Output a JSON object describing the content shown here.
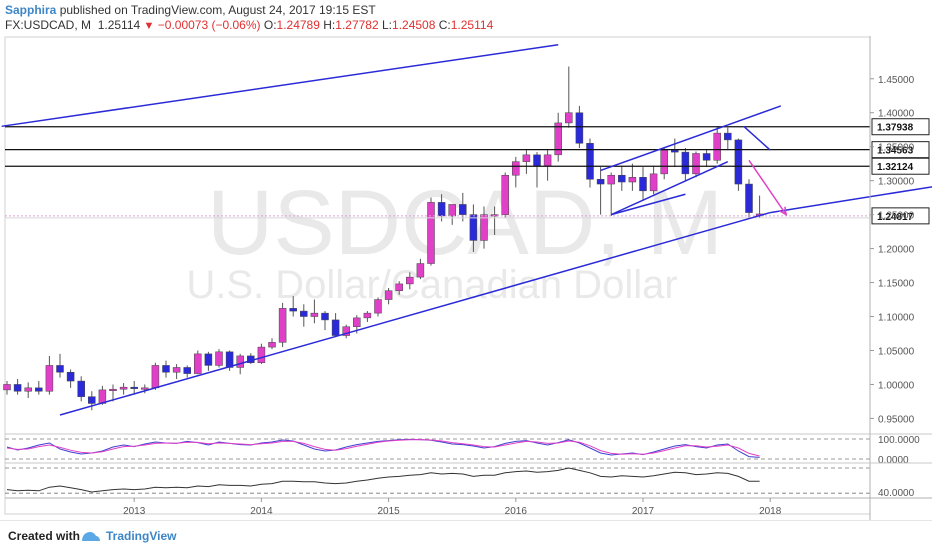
{
  "header": {
    "author": "Sapphira",
    "published_text": " published on TradingView.com, August 24, 2017 19:15 EST",
    "symbol": "FX:USDCAD, M",
    "last": "1.25114",
    "arrow": "▼",
    "change": "−0.00073 (−0.06%)",
    "o_label": "O:",
    "o_value": "1.24789",
    "h_label": "H:",
    "h_value": "1.27782",
    "l_label": "L:",
    "l_value": "1.24508",
    "c_label": "C:",
    "c_value": "1.25114"
  },
  "footer": {
    "created_with": "Created with",
    "brand": "TradingView"
  },
  "watermark": {
    "line1": "USDCAD, M",
    "line2": "U.S. Dollar/Canadian Dollar"
  },
  "colors": {
    "up": "#e040c8",
    "down": "#2a2ad8",
    "trend": "#2a2ad8",
    "level": "#111111",
    "arrow": "#e040c8"
  },
  "chart_data": {
    "type": "candlestick",
    "timeframe": "monthly",
    "price_axis": {
      "ylim": [
        0.93,
        1.51
      ],
      "ticks": [
        0.95,
        1.0,
        1.05,
        1.1,
        1.15,
        1.2,
        1.25,
        1.3,
        1.35,
        1.4,
        1.45
      ],
      "tick_labels": [
        "0.95000",
        "1.00000",
        "1.05000",
        "1.10000",
        "1.15000",
        "1.20000",
        "1.25000",
        "1.30000",
        "1.35000",
        "1.40000",
        "1.45000"
      ]
    },
    "time_axis": {
      "labels": [
        "2013",
        "2014",
        "2015",
        "2016",
        "2017",
        "2018"
      ]
    },
    "candles": [
      {
        "o": 0.992,
        "h": 1.005,
        "l": 0.985,
        "c": 1.0
      },
      {
        "o": 1.0,
        "h": 1.008,
        "l": 0.985,
        "c": 0.99
      },
      {
        "o": 0.99,
        "h": 1.003,
        "l": 0.98,
        "c": 0.995
      },
      {
        "o": 0.995,
        "h": 1.005,
        "l": 0.985,
        "c": 0.99
      },
      {
        "o": 0.99,
        "h": 1.042,
        "l": 0.985,
        "c": 1.028
      },
      {
        "o": 1.028,
        "h": 1.045,
        "l": 1.01,
        "c": 1.018
      },
      {
        "o": 1.018,
        "h": 1.022,
        "l": 0.995,
        "c": 1.005
      },
      {
        "o": 1.005,
        "h": 1.012,
        "l": 0.975,
        "c": 0.982
      },
      {
        "o": 0.982,
        "h": 0.99,
        "l": 0.962,
        "c": 0.972
      },
      {
        "o": 0.972,
        "h": 0.998,
        "l": 0.97,
        "c": 0.992
      },
      {
        "o": 0.992,
        "h": 1.0,
        "l": 0.975,
        "c": 0.993
      },
      {
        "o": 0.993,
        "h": 1.002,
        "l": 0.985,
        "c": 0.996
      },
      {
        "o": 0.996,
        "h": 1.005,
        "l": 0.985,
        "c": 0.994
      },
      {
        "o": 0.994,
        "h": 1.0,
        "l": 0.987,
        "c": 0.995
      },
      {
        "o": 0.995,
        "h": 1.032,
        "l": 0.992,
        "c": 1.028
      },
      {
        "o": 1.028,
        "h": 1.035,
        "l": 1.01,
        "c": 1.018
      },
      {
        "o": 1.018,
        "h": 1.03,
        "l": 1.008,
        "c": 1.025
      },
      {
        "o": 1.025,
        "h": 1.028,
        "l": 1.01,
        "c": 1.016
      },
      {
        "o": 1.016,
        "h": 1.05,
        "l": 1.015,
        "c": 1.045
      },
      {
        "o": 1.045,
        "h": 1.048,
        "l": 1.02,
        "c": 1.028
      },
      {
        "o": 1.028,
        "h": 1.052,
        "l": 1.025,
        "c": 1.048
      },
      {
        "o": 1.048,
        "h": 1.05,
        "l": 1.02,
        "c": 1.025
      },
      {
        "o": 1.025,
        "h": 1.045,
        "l": 1.015,
        "c": 1.042
      },
      {
        "o": 1.042,
        "h": 1.046,
        "l": 1.03,
        "c": 1.032
      },
      {
        "o": 1.032,
        "h": 1.06,
        "l": 1.03,
        "c": 1.055
      },
      {
        "o": 1.055,
        "h": 1.068,
        "l": 1.052,
        "c": 1.062
      },
      {
        "o": 1.062,
        "h": 1.12,
        "l": 1.055,
        "c": 1.112
      },
      {
        "o": 1.112,
        "h": 1.13,
        "l": 1.1,
        "c": 1.108
      },
      {
        "o": 1.108,
        "h": 1.118,
        "l": 1.085,
        "c": 1.1
      },
      {
        "o": 1.1,
        "h": 1.125,
        "l": 1.09,
        "c": 1.105
      },
      {
        "o": 1.105,
        "h": 1.108,
        "l": 1.08,
        "c": 1.095
      },
      {
        "o": 1.095,
        "h": 1.105,
        "l": 1.07,
        "c": 1.072
      },
      {
        "o": 1.072,
        "h": 1.088,
        "l": 1.068,
        "c": 1.085
      },
      {
        "o": 1.085,
        "h": 1.102,
        "l": 1.075,
        "c": 1.098
      },
      {
        "o": 1.098,
        "h": 1.108,
        "l": 1.092,
        "c": 1.105
      },
      {
        "o": 1.105,
        "h": 1.128,
        "l": 1.1,
        "c": 1.125
      },
      {
        "o": 1.125,
        "h": 1.142,
        "l": 1.118,
        "c": 1.138
      },
      {
        "o": 1.138,
        "h": 1.152,
        "l": 1.132,
        "c": 1.148
      },
      {
        "o": 1.148,
        "h": 1.165,
        "l": 1.14,
        "c": 1.158
      },
      {
        "o": 1.158,
        "h": 1.185,
        "l": 1.155,
        "c": 1.178
      },
      {
        "o": 1.178,
        "h": 1.275,
        "l": 1.175,
        "c": 1.268
      },
      {
        "o": 1.268,
        "h": 1.28,
        "l": 1.24,
        "c": 1.248
      },
      {
        "o": 1.248,
        "h": 1.265,
        "l": 1.235,
        "c": 1.265
      },
      {
        "o": 1.265,
        "h": 1.282,
        "l": 1.24,
        "c": 1.25
      },
      {
        "o": 1.25,
        "h": 1.265,
        "l": 1.195,
        "c": 1.212
      },
      {
        "o": 1.212,
        "h": 1.262,
        "l": 1.2,
        "c": 1.25
      },
      {
        "o": 1.25,
        "h": 1.262,
        "l": 1.22,
        "c": 1.25
      },
      {
        "o": 1.25,
        "h": 1.312,
        "l": 1.245,
        "c": 1.308
      },
      {
        "o": 1.308,
        "h": 1.335,
        "l": 1.29,
        "c": 1.328
      },
      {
        "o": 1.328,
        "h": 1.345,
        "l": 1.31,
        "c": 1.338
      },
      {
        "o": 1.338,
        "h": 1.342,
        "l": 1.29,
        "c": 1.322
      },
      {
        "o": 1.322,
        "h": 1.345,
        "l": 1.3,
        "c": 1.338
      },
      {
        "o": 1.338,
        "h": 1.4,
        "l": 1.328,
        "c": 1.385
      },
      {
        "o": 1.385,
        "h": 1.468,
        "l": 1.378,
        "c": 1.4
      },
      {
        "o": 1.4,
        "h": 1.41,
        "l": 1.348,
        "c": 1.355
      },
      {
        "o": 1.355,
        "h": 1.362,
        "l": 1.29,
        "c": 1.302
      },
      {
        "o": 1.302,
        "h": 1.32,
        "l": 1.25,
        "c": 1.295
      },
      {
        "o": 1.295,
        "h": 1.312,
        "l": 1.248,
        "c": 1.308
      },
      {
        "o": 1.308,
        "h": 1.322,
        "l": 1.285,
        "c": 1.298
      },
      {
        "o": 1.298,
        "h": 1.325,
        "l": 1.285,
        "c": 1.305
      },
      {
        "o": 1.305,
        "h": 1.32,
        "l": 1.27,
        "c": 1.285
      },
      {
        "o": 1.285,
        "h": 1.322,
        "l": 1.28,
        "c": 1.31
      },
      {
        "o": 1.31,
        "h": 1.348,
        "l": 1.302,
        "c": 1.345
      },
      {
        "o": 1.345,
        "h": 1.362,
        "l": 1.32,
        "c": 1.342
      },
      {
        "o": 1.342,
        "h": 1.348,
        "l": 1.3,
        "c": 1.31
      },
      {
        "o": 1.31,
        "h": 1.343,
        "l": 1.305,
        "c": 1.34
      },
      {
        "o": 1.34,
        "h": 1.345,
        "l": 1.32,
        "c": 1.33
      },
      {
        "o": 1.33,
        "h": 1.38,
        "l": 1.325,
        "c": 1.37
      },
      {
        "o": 1.37,
        "h": 1.378,
        "l": 1.345,
        "c": 1.36
      },
      {
        "o": 1.36,
        "h": 1.362,
        "l": 1.285,
        "c": 1.295
      },
      {
        "o": 1.295,
        "h": 1.302,
        "l": 1.245,
        "c": 1.253
      },
      {
        "o": 1.248,
        "h": 1.278,
        "l": 1.245,
        "c": 1.251
      }
    ],
    "horizontal_levels": [
      {
        "price": 1.37938,
        "label": "1.37938",
        "style": "line"
      },
      {
        "price": 1.34563,
        "label": "1.34563",
        "style": "line"
      },
      {
        "price": 1.32124,
        "label": "1.32124",
        "style": "line"
      },
      {
        "price": 1.24817,
        "label": "1.24817",
        "style": "dotted"
      }
    ],
    "trendlines": [
      {
        "from": [
          -0.5,
          1.38
        ],
        "to": [
          52,
          1.5
        ]
      },
      {
        "from": [
          5,
          0.955
        ],
        "to": [
          72,
          1.253
        ]
      },
      {
        "from": [
          72,
          1.253
        ],
        "to": [
          99,
          1.32
        ]
      },
      {
        "from": [
          57,
          1.25
        ],
        "to": [
          64,
          1.28
        ]
      },
      {
        "from": [
          57,
          1.25
        ],
        "to": [
          68,
          1.328
        ]
      },
      {
        "from": [
          56,
          1.315
        ],
        "to": [
          68,
          1.382
        ]
      },
      {
        "from": [
          68,
          1.382
        ],
        "to": [
          73,
          1.41
        ]
      },
      {
        "from": [
          69.5,
          1.38
        ],
        "to": [
          72,
          1.345
        ]
      }
    ],
    "arrow": {
      "from": [
        70,
        1.33
      ],
      "to": [
        73.5,
        1.25
      ]
    },
    "oscillator_1": {
      "type": "stochastic",
      "ticks": [
        100,
        0
      ],
      "tick_labels": [
        "100.0000",
        "0.0000"
      ],
      "k": [
        60,
        45,
        55,
        70,
        80,
        50,
        35,
        25,
        30,
        40,
        60,
        70,
        62,
        75,
        85,
        80,
        78,
        88,
        82,
        70,
        85,
        78,
        72,
        70,
        80,
        85,
        95,
        90,
        70,
        50,
        40,
        45,
        60,
        72,
        80,
        88,
        92,
        96,
        98,
        97,
        94,
        85,
        75,
        72,
        65,
        55,
        62,
        78,
        88,
        92,
        80,
        70,
        82,
        96,
        80,
        55,
        30,
        20,
        25,
        30,
        22,
        35,
        50,
        65,
        72,
        62,
        55,
        70,
        75,
        40,
        12,
        8
      ],
      "d": [
        55,
        48,
        50,
        62,
        70,
        58,
        44,
        33,
        30,
        36,
        50,
        62,
        64,
        70,
        78,
        80,
        79,
        84,
        83,
        76,
        80,
        78,
        75,
        72,
        76,
        80,
        88,
        88,
        78,
        62,
        48,
        44,
        52,
        64,
        74,
        84,
        90,
        94,
        96,
        97,
        95,
        90,
        82,
        76,
        70,
        62,
        60,
        70,
        80,
        88,
        85,
        78,
        80,
        90,
        84,
        66,
        42,
        28,
        24,
        26,
        24,
        30,
        42,
        55,
        66,
        66,
        60,
        64,
        70,
        55,
        28,
        15
      ]
    },
    "oscillator_2": {
      "type": "rsi",
      "ticks": [
        40
      ],
      "tick_labels": [
        "40.0000"
      ],
      "values": [
        44,
        42,
        43,
        42,
        48,
        50,
        47,
        44,
        40,
        42,
        44,
        45,
        44,
        45,
        48,
        47,
        48,
        47,
        50,
        49,
        52,
        51,
        51,
        50,
        53,
        54,
        58,
        58,
        57,
        57,
        55,
        54,
        55,
        58,
        60,
        63,
        65,
        66,
        68,
        69,
        72,
        70,
        71,
        70,
        66,
        68,
        68,
        72,
        74,
        75,
        73,
        74,
        76,
        80,
        76,
        72,
        66,
        65,
        67,
        66,
        65,
        67,
        70,
        73,
        72,
        69,
        70,
        72,
        71,
        66,
        58,
        58
      ]
    }
  }
}
